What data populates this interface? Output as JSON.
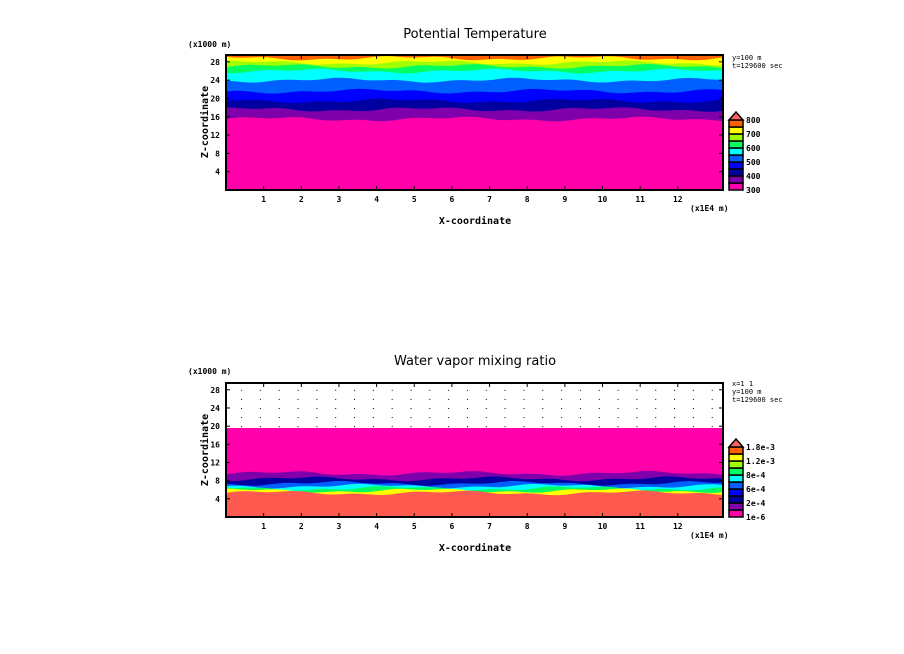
{
  "chart_data": [
    {
      "type": "heatmap",
      "title": "Potential Temperature",
      "xlabel": "X-coordinate",
      "ylabel": "Z-coordinate",
      "x_unit": "(x1E4 m)",
      "y_unit": "(x1000 m)",
      "xlim": [
        0,
        13.2
      ],
      "ylim": [
        0,
        29.5
      ],
      "xticks": [
        "1",
        "2",
        "3",
        "4",
        "5",
        "6",
        "7",
        "8",
        "9",
        "10",
        "11",
        "12"
      ],
      "yticks": [
        "4",
        "8",
        "12",
        "16",
        "20",
        "24",
        "28"
      ],
      "annotations": [
        "y=100 m",
        "t=129600 sec"
      ],
      "colorbar_labels": [
        "800",
        "700",
        "600",
        "500",
        "400",
        "300"
      ],
      "colors": [
        "#ff00aa",
        "#7f00aa",
        "#0000a0",
        "#0000ff",
        "#0060ff",
        "#00ffff",
        "#00ff60",
        "#a0ff00",
        "#ffff00",
        "#ff6000",
        "#ff6060"
      ],
      "bands": [
        {
          "z_top": 15.5,
          "color": "#ff00aa"
        },
        {
          "z_top": 17.6,
          "color": "#7f00aa"
        },
        {
          "z_top": 19.5,
          "color": "#0000a0"
        },
        {
          "z_top": 21.6,
          "color": "#0000ff"
        },
        {
          "z_top": 24.0,
          "color": "#0060ff"
        },
        {
          "z_top": 26.0,
          "color": "#00ffff"
        },
        {
          "z_top": 27.0,
          "color": "#00ff60"
        },
        {
          "z_top": 27.8,
          "color": "#a0ff00"
        },
        {
          "z_top": 28.8,
          "color": "#ffff00"
        },
        {
          "z_top": 29.5,
          "color": "#ff6000"
        }
      ]
    },
    {
      "type": "heatmap",
      "title": "Water vapor mixing ratio",
      "xlabel": "X-coordinate",
      "ylabel": "Z-coordinate",
      "x_unit": "(x1E4 m)",
      "y_unit": "(x1000 m)",
      "xlim": [
        0,
        13.2
      ],
      "ylim": [
        0,
        29.5
      ],
      "xticks": [
        "1",
        "2",
        "3",
        "4",
        "5",
        "6",
        "7",
        "8",
        "9",
        "10",
        "11",
        "12"
      ],
      "yticks": [
        "4",
        "8",
        "12",
        "16",
        "20",
        "24",
        "28"
      ],
      "annotations": [
        "x=1 1",
        "y=100 m",
        "t=129600 sec"
      ],
      "colorbar_labels": [
        "1.8e-3",
        "1.2e-3",
        "8e-4",
        "6e-4",
        "2e-4",
        "1e-6"
      ],
      "colors": [
        "#ff00aa",
        "#7f00aa",
        "#0000a0",
        "#0000ff",
        "#0060ff",
        "#00ffff",
        "#00ff60",
        "#a0ff00",
        "#ffff00",
        "#ff6000",
        "#ff6060"
      ],
      "bands": [
        {
          "z_top": 5.3,
          "color": "#ff5a50"
        },
        {
          "z_top": 5.8,
          "color": "#ffff00"
        },
        {
          "z_top": 6.3,
          "color": "#00ff60"
        },
        {
          "z_top": 6.8,
          "color": "#00ffff"
        },
        {
          "z_top": 7.4,
          "color": "#0060ff"
        },
        {
          "z_top": 8.4,
          "color": "#0000a0"
        },
        {
          "z_top": 9.6,
          "color": "#7f00aa"
        },
        {
          "z_top": 19.6,
          "color": "#ff00aa"
        }
      ],
      "dotted_region_above": 19.6
    }
  ]
}
